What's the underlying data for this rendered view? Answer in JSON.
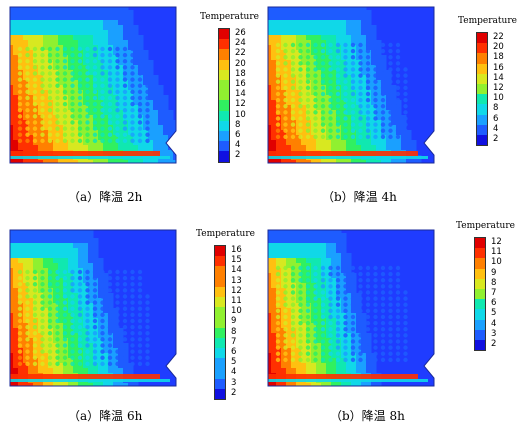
{
  "panels": [
    {
      "id": "a-2h",
      "caption": "（a）降温 2h",
      "legend_title": "Temperature",
      "legend_values": [
        "26",
        "24",
        "22",
        "20",
        "18",
        "16",
        "14",
        "12",
        "10",
        "8",
        "6",
        "4",
        "2"
      ],
      "hot_extent": 0.62
    },
    {
      "id": "b-4h",
      "caption": "（b）降温 4h",
      "legend_title": "Temperature",
      "legend_values": [
        "22",
        "20",
        "18",
        "16",
        "14",
        "12",
        "10",
        "8",
        "6",
        "4",
        "2"
      ],
      "hot_extent": 0.48
    },
    {
      "id": "a-6h",
      "caption": "（a）降温 6h",
      "legend_title": "Temperature",
      "legend_values": [
        "16",
        "15",
        "14",
        "13",
        "12",
        "11",
        "10",
        "9",
        "8",
        "7",
        "6",
        "5",
        "4",
        "3",
        "2"
      ],
      "hot_extent": 0.36
    },
    {
      "id": "b-8h",
      "caption": "（b）降温 8h",
      "legend_title": "Temperature",
      "legend_values": [
        "12",
        "11",
        "10",
        "9",
        "8",
        "7",
        "6",
        "5",
        "4",
        "3",
        "2"
      ],
      "hot_extent": 0.3
    }
  ],
  "colors": {
    "background_cold": "#1f3cff",
    "palette": [
      "#1010e0",
      "#1e5cff",
      "#1aa0ff",
      "#10d8e8",
      "#10e8b0",
      "#30f060",
      "#90f030",
      "#d8e820",
      "#ffc010",
      "#ff8000",
      "#ff3000",
      "#e00000"
    ]
  }
}
